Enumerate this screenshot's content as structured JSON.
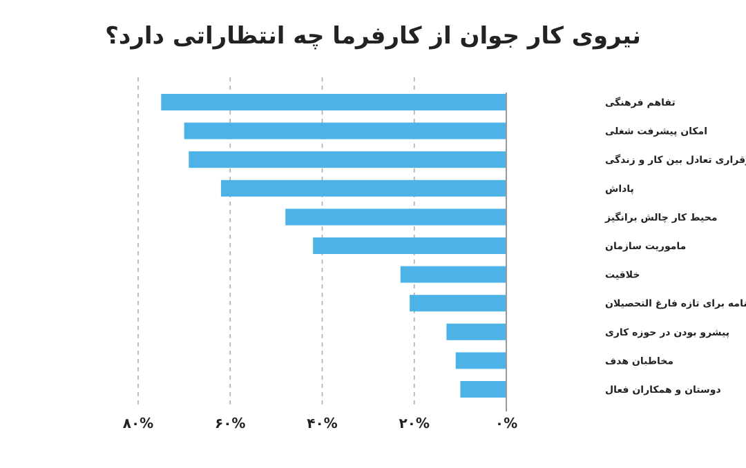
{
  "chart_data": {
    "type": "bar",
    "orientation": "horizontal",
    "title": "نیروی کار جوان از کارفرما چه انتظاراتی دارد؟",
    "categories": [
      "تفاهم فرهنگی",
      "امکان پیشرفت شغلی",
      "برقراری تعادل بین کار و زندگی",
      "پاداش",
      "محیط کار چالش برانگیز",
      "ماموریت سازمان",
      "خلاقیت",
      "داشتن برنامه برای تازه فارغ التحصیلان",
      "پیشرو بودن در حوزه کاری",
      "مخاطبان هدف",
      "دوستان و همکاران فعال"
    ],
    "values": [
      75,
      70,
      69,
      62,
      48,
      42,
      23,
      21,
      13,
      11,
      10
    ],
    "xlim": [
      0,
      80
    ],
    "ticks": [
      0,
      20,
      40,
      60,
      80
    ],
    "tick_labels": [
      "۰%",
      "۲۰%",
      "۴۰%",
      "۶۰%",
      "۸۰%"
    ],
    "x_direction": "right-to-left",
    "grid": true,
    "bar_color": "#4db3e6"
  }
}
